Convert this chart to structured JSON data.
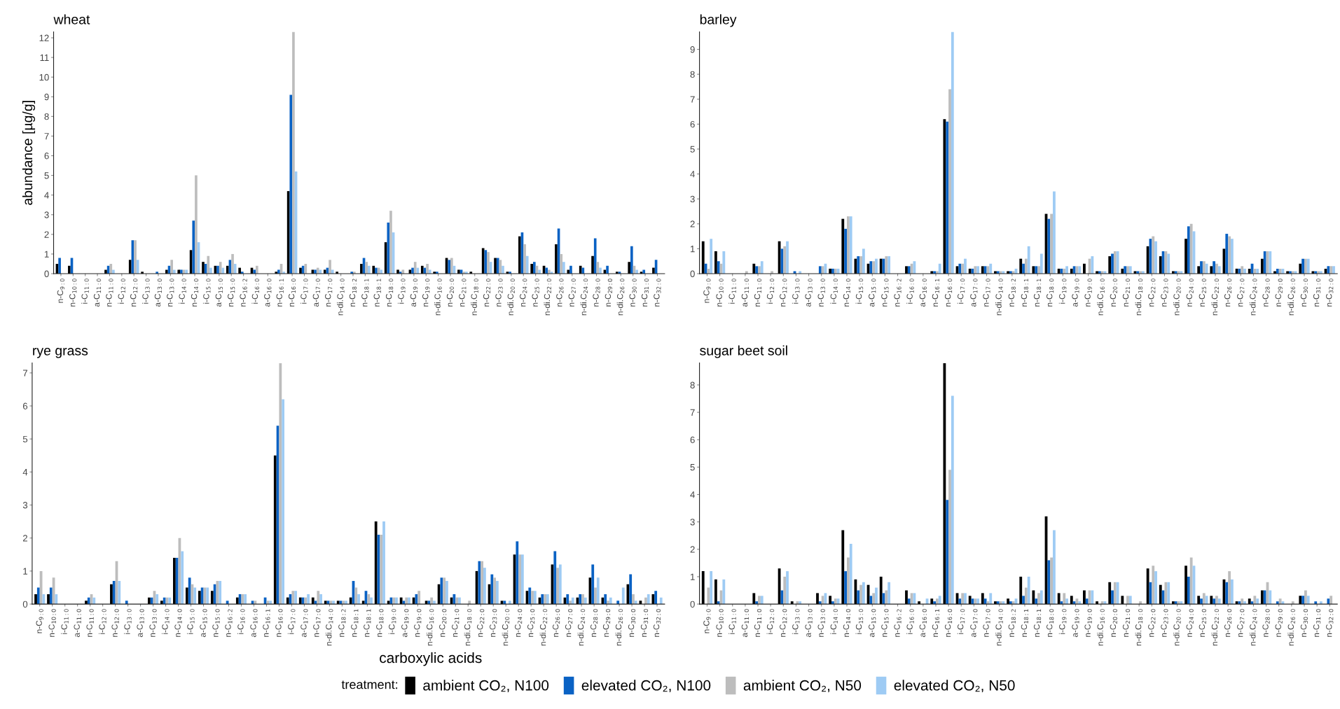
{
  "chart_data": [
    {
      "type": "bar",
      "title": "wheat",
      "ylabel": "abundance [µg/g]",
      "categories": [
        "n-C$_{9:0}$",
        "n-C$_{10:0}$",
        "i-C$_{11:0}$",
        "a-C$_{11:0}$",
        "n-C$_{11:0}$",
        "i-C$_{12:0}$",
        "n-C$_{12:0}$",
        "i-C$_{13:0}$",
        "a-C$_{13:0}$",
        "n-C$_{13:0}$",
        "i-C$_{14:0}$",
        "n-C$_{14:0}$",
        "i-C$_{15:0}$",
        "a-C$_{15:0}$",
        "n-C$_{15:0}$",
        "n-C$_{16:2}$",
        "i-C$_{16:0}$",
        "a-C$_{16:0}$",
        "n-C$_{16:1}$",
        "n-C$_{16:0}$",
        "i-C$_{17:0}$",
        "a-C$_{17:0}$",
        "n-C$_{17:0}$",
        "n-di.C$_{14:0}$",
        "n-C$_{18:2}$",
        "n-C$_{18:1}$",
        "n-C$_{18:1}$",
        "n-C$_{18:0}$",
        "i-C$_{19:0}$",
        "a-C$_{19:0}$",
        "n-C$_{19:0}$",
        "n-di.C$_{16:0}$",
        "n-C$_{20:0}$",
        "n-C$_{21:0}$",
        "n-di.C$_{18:0}$",
        "n-C$_{22:0}$",
        "n-C$_{23:0}$",
        "n-di.C$_{20:0}$",
        "n-C$_{24:0}$",
        "n-C$_{25:0}$",
        "n-di.C$_{22:0}$",
        "n-C$_{26:0}$",
        "n-C$_{27:0}$",
        "n-di.C$_{24:0}$",
        "n-C$_{28:0}$",
        "n-C$_{29:0}$",
        "n-di.C$_{26:0}$",
        "n-C$_{30:0}$",
        "n-C$_{31:0}$",
        "n-C$_{32:0}$"
      ],
      "series": [
        {
          "color": "#000000",
          "values": [
            0.5,
            0.4,
            0,
            0,
            0.2,
            0,
            0.7,
            0.1,
            0,
            0.2,
            0.2,
            1.2,
            0.6,
            0.4,
            0.4,
            0.3,
            0.3,
            0,
            0.1,
            4.2,
            0.3,
            0.2,
            0.2,
            0.1,
            0,
            0.5,
            0.4,
            1.6,
            0.2,
            0.2,
            0.4,
            0.1,
            0.8,
            0.2,
            0.1,
            1.3,
            0.8,
            0.1,
            1.9,
            0.5,
            0.4,
            1.5,
            0.2,
            0.4,
            0.9,
            0.2,
            0.1,
            0.6,
            0.1,
            0.3
          ]
        },
        {
          "color": "#0a62c4",
          "values": [
            0.8,
            0.8,
            0,
            0,
            0.4,
            0,
            1.7,
            0,
            0.1,
            0.4,
            0.2,
            2.7,
            0.5,
            0.4,
            0.7,
            0.1,
            0.2,
            0,
            0.2,
            9.1,
            0.4,
            0.2,
            0.3,
            0,
            0.1,
            0.8,
            0.3,
            2.6,
            0.1,
            0.3,
            0.3,
            0.1,
            0.7,
            0.2,
            0,
            1.2,
            0.8,
            0.1,
            2.1,
            0.6,
            0.3,
            2.3,
            0.4,
            0.3,
            1.8,
            0.4,
            0.1,
            1.4,
            0.2,
            0.7
          ]
        },
        {
          "color": "#bdbdbd",
          "values": [
            0,
            0,
            0,
            0,
            0.5,
            0,
            1.7,
            0,
            0,
            0.7,
            0.2,
            5.0,
            0.9,
            0.6,
            1.0,
            0,
            0.4,
            0,
            0.5,
            12.3,
            0.5,
            0.3,
            0.7,
            0,
            0.1,
            0.6,
            0.3,
            3.2,
            0.2,
            0.6,
            0.5,
            0,
            0.8,
            0.1,
            0,
            1.1,
            0.7,
            0,
            1.5,
            0.4,
            0.2,
            1.0,
            0,
            0,
            0.6,
            0,
            0,
            0.4,
            0,
            0
          ]
        },
        {
          "color": "#9ecbf4",
          "values": [
            0,
            0,
            0,
            0,
            0.2,
            0,
            0.7,
            0,
            0,
            0.2,
            0.2,
            1.6,
            0.3,
            0.3,
            0.5,
            0,
            0,
            0,
            0.1,
            5.2,
            0,
            0.2,
            0.2,
            0,
            0,
            0.4,
            0.2,
            2.1,
            0,
            0.3,
            0.2,
            0,
            0.4,
            0.1,
            0,
            0.6,
            0.4,
            0,
            0.9,
            0.2,
            0.1,
            0.6,
            0,
            0,
            0.3,
            0,
            0,
            0.2,
            0,
            0
          ]
        }
      ],
      "ylim": [
        0,
        12.3
      ],
      "yticks": [
        0,
        1,
        2,
        3,
        4,
        5,
        6,
        7,
        8,
        9,
        10,
        11,
        12
      ]
    },
    {
      "type": "bar",
      "title": "barley",
      "categories": [
        "n-C$_{9:0}$",
        "n-C$_{10:0}$",
        "i-C$_{11:0}$",
        "a-C$_{11:0}$",
        "n-C$_{11:0}$",
        "i-C$_{12:0}$",
        "n-C$_{12:0}$",
        "i-C$_{13:0}$",
        "a-C$_{13:0}$",
        "n-C$_{13:0}$",
        "i-C$_{14:0}$",
        "n-C$_{14:0}$",
        "i-C$_{15:0}$",
        "a-C$_{15:0}$",
        "n-C$_{15:0}$",
        "n-C$_{16:2}$",
        "i-C$_{16:0}$",
        "a-C$_{16:0}$",
        "n-C$_{16:1}$",
        "n-C$_{16:0}$",
        "i-C$_{17:0}$",
        "a-C$_{17:0}$",
        "n-C$_{17:0}$",
        "n-di.C$_{14:0}$",
        "n-C$_{18:2}$",
        "n-C$_{18:1}$",
        "n-C$_{18:1}$",
        "n-C$_{18:0}$",
        "i-C$_{19:0}$",
        "a-C$_{19:0}$",
        "n-C$_{19:0}$",
        "n-di.C$_{16:0}$",
        "n-C$_{20:0}$",
        "n-C$_{21:0}$",
        "n-di.C$_{18:0}$",
        "n-C$_{22:0}$",
        "n-C$_{23:0}$",
        "n-di.C$_{20:0}$",
        "n-C$_{24:0}$",
        "n-C$_{25:0}$",
        "n-di.C$_{22:0}$",
        "n-C$_{26:0}$",
        "n-C$_{27:0}$",
        "n-di.C$_{24:0}$",
        "n-C$_{28:0}$",
        "n-C$_{29:0}$",
        "n-di.C$_{26:0}$",
        "n-C$_{30:0}$",
        "n-C$_{31:0}$",
        "n-C$_{32:0}$"
      ],
      "series": [
        {
          "color": "#000000",
          "values": [
            1.3,
            0.9,
            0,
            0,
            0.4,
            0,
            1.3,
            0,
            0,
            0,
            0.2,
            2.2,
            0.6,
            0.4,
            0.6,
            0,
            0.3,
            0,
            0.1,
            6.2,
            0.3,
            0.2,
            0.3,
            0.1,
            0.1,
            0.6,
            0.3,
            2.4,
            0.2,
            0.2,
            0.4,
            0.1,
            0.7,
            0.2,
            0.1,
            1.1,
            0.7,
            0.1,
            1.4,
            0.3,
            0.3,
            1.0,
            0.2,
            0.2,
            0.6,
            0.1,
            0.1,
            0.4,
            0.1,
            0.2
          ]
        },
        {
          "color": "#0a62c4",
          "values": [
            0.4,
            0.5,
            0,
            0,
            0.3,
            0,
            1.0,
            0.1,
            0,
            0.3,
            0.2,
            1.8,
            0.7,
            0.5,
            0.6,
            0,
            0.3,
            0,
            0.1,
            6.1,
            0.4,
            0.2,
            0.3,
            0.1,
            0.1,
            0.4,
            0.3,
            2.2,
            0.2,
            0.3,
            0,
            0.1,
            0.8,
            0.3,
            0.1,
            1.4,
            0.9,
            0.1,
            1.9,
            0.5,
            0.5,
            1.6,
            0.2,
            0.4,
            0.9,
            0.2,
            0.1,
            0.6,
            0.1,
            0.3
          ]
        },
        {
          "color": "#bdbdbd",
          "values": [
            0.2,
            0.4,
            0,
            0.1,
            0.3,
            0.1,
            1.1,
            0,
            0,
            0.3,
            0.2,
            2.3,
            0.7,
            0.5,
            0.7,
            0,
            0.4,
            0,
            0.1,
            7.4,
            0.4,
            0.3,
            0.3,
            0.1,
            0.1,
            0.6,
            0.3,
            2.4,
            0.2,
            0.3,
            0.6,
            0.1,
            0.9,
            0.3,
            0.1,
            1.5,
            0.9,
            0.1,
            2.0,
            0.5,
            0.4,
            1.5,
            0.3,
            0.2,
            0.9,
            0.2,
            0.1,
            0.6,
            0.1,
            0.3
          ]
        },
        {
          "color": "#9ecbf4",
          "values": [
            1.4,
            0.9,
            0,
            0,
            0.5,
            0,
            1.3,
            0.1,
            0,
            0.4,
            0.2,
            2.3,
            1.0,
            0.6,
            0.7,
            0,
            0.5,
            0,
            0.4,
            9.7,
            0.6,
            0.3,
            0.4,
            0.1,
            0.2,
            1.1,
            0.8,
            3.3,
            0.3,
            0.3,
            0.7,
            0.1,
            0.9,
            0.3,
            0.1,
            1.3,
            0.8,
            0.1,
            1.7,
            0.4,
            0.3,
            1.4,
            0.2,
            0.2,
            0.9,
            0.2,
            0.1,
            0.6,
            0.1,
            0.3
          ]
        }
      ],
      "ylim": [
        0,
        9.7
      ],
      "yticks": [
        0,
        1,
        2,
        3,
        4,
        5,
        6,
        7,
        8,
        9
      ]
    },
    {
      "type": "bar",
      "title": "rye grass",
      "xlabel": "carboxylic acids",
      "legend": "bottom",
      "legend_title": "treatment:",
      "categories": [
        "n-C$_{9:0}$",
        "n-C$_{10:0}$",
        "i-C$_{11:0}$",
        "a-C$_{11:0}$",
        "n-C$_{11:0}$",
        "i-C$_{12:0}$",
        "n-C$_{12:0}$",
        "i-C$_{13:0}$",
        "a-C$_{13:0}$",
        "n-C$_{13:0}$",
        "i-C$_{14:0}$",
        "n-C$_{14:0}$",
        "i-C$_{15:0}$",
        "a-C$_{15:0}$",
        "n-C$_{15:0}$",
        "n-C$_{16:2}$",
        "i-C$_{16:0}$",
        "a-C$_{16:0}$",
        "n-C$_{16:1}$",
        "n-C$_{16:0}$",
        "i-C$_{17:0}$",
        "a-C$_{17:0}$",
        "n-C$_{17:0}$",
        "n-di.C$_{14:0}$",
        "n-C$_{18:2}$",
        "n-C$_{18:1}$",
        "n-C$_{18:1}$",
        "n-C$_{18:0}$",
        "i-C$_{19:0}$",
        "a-C$_{19:0}$",
        "n-C$_{19:0}$",
        "n-di.C$_{16:0}$",
        "n-C$_{20:0}$",
        "n-C$_{21:0}$",
        "n-di.C$_{18:0}$",
        "n-C$_{22:0}$",
        "n-C$_{23:0}$",
        "n-di.C$_{20:0}$",
        "n-C$_{24:0}$",
        "n-C$_{25:0}$",
        "n-di.C$_{22:0}$",
        "n-C$_{26:0}$",
        "n-C$_{27:0}$",
        "n-di.C$_{24:0}$",
        "n-C$_{28:0}$",
        "n-C$_{29:0}$",
        "n-di.C$_{26:0}$",
        "n-C$_{30:0}$",
        "n-C$_{31:0}$",
        "n-C$_{32:0}$"
      ],
      "series": [
        {
          "name": "ambient CO₂, N100",
          "color": "#000000",
          "values": [
            0.3,
            0.3,
            0,
            0,
            0.1,
            0,
            0.6,
            0,
            0,
            0.2,
            0.1,
            1.4,
            0.5,
            0.4,
            0.4,
            0,
            0.2,
            0,
            0,
            4.5,
            0.2,
            0.2,
            0.2,
            0.1,
            0.1,
            0.2,
            0.1,
            2.5,
            0.1,
            0.2,
            0.2,
            0.1,
            0.6,
            0.2,
            0,
            1.0,
            0.6,
            0.1,
            1.5,
            0.4,
            0.2,
            1.2,
            0.2,
            0.2,
            0.8,
            0.2,
            0,
            0.6,
            0.1,
            0.3
          ]
        },
        {
          "name": "elevated CO₂, N100",
          "color": "#0a62c4",
          "values": [
            0.5,
            0.5,
            0,
            0,
            0.2,
            0,
            0.7,
            0.1,
            0,
            0.2,
            0.2,
            1.4,
            0.8,
            0.5,
            0.6,
            0.1,
            0.3,
            0.1,
            0.2,
            5.4,
            0.3,
            0.2,
            0.1,
            0.1,
            0.1,
            0.7,
            0.4,
            2.1,
            0.2,
            0.1,
            0.3,
            0.1,
            0.8,
            0.3,
            0,
            1.3,
            0.9,
            0.1,
            1.9,
            0.5,
            0.3,
            1.6,
            0.3,
            0.3,
            1.2,
            0.3,
            0.1,
            0.9,
            0,
            0.4
          ]
        },
        {
          "name": "ambient CO₂, N50",
          "color": "#bdbdbd",
          "values": [
            1.0,
            0.8,
            0,
            0,
            0.3,
            0,
            1.3,
            0,
            0,
            0.4,
            0.2,
            2.0,
            0.6,
            0.5,
            0.7,
            0,
            0.3,
            0.1,
            0.1,
            7.3,
            0.4,
            0.2,
            0.4,
            0.1,
            0.1,
            0.5,
            0.3,
            2.1,
            0.2,
            0.2,
            0.4,
            0.2,
            0.8,
            0.2,
            0.1,
            1.3,
            0.8,
            0,
            1.5,
            0.4,
            0.3,
            1.1,
            0.1,
            0.3,
            0.5,
            0.1,
            0,
            0.3,
            0.2,
            0
          ]
        },
        {
          "name": "elevated CO₂, N50",
          "color": "#9ecbf4",
          "values": [
            0.3,
            0.3,
            0,
            0,
            0.2,
            0,
            0.7,
            0,
            0,
            0.3,
            0.2,
            1.6,
            0.5,
            0.5,
            0.7,
            0,
            0.3,
            0,
            0.1,
            6.2,
            0.4,
            0.3,
            0.3,
            0.1,
            0.1,
            0.3,
            0.2,
            2.5,
            0.2,
            0.2,
            0,
            0.1,
            0.7,
            0.2,
            0,
            1.1,
            0.7,
            0.1,
            1.5,
            0.4,
            0.3,
            1.2,
            0.2,
            0.2,
            0.8,
            0.2,
            0.5,
            0.1,
            0.3,
            0.2
          ]
        }
      ],
      "ylim": [
        0,
        7.3
      ],
      "yticks": [
        0,
        1,
        2,
        3,
        4,
        5,
        6,
        7
      ]
    },
    {
      "type": "bar",
      "title": "sugar beet soil",
      "categories": [
        "n-C$_{9:0}$",
        "n-C$_{10:0}$",
        "i-C$_{11:0}$",
        "a-C$_{11:0}$",
        "n-C$_{11:0}$",
        "i-C$_{12:0}$",
        "n-C$_{12:0}$",
        "i-C$_{13:0}$",
        "a-C$_{13:0}$",
        "n-C$_{13:0}$",
        "i-C$_{14:0}$",
        "n-C$_{14:0}$",
        "i-C$_{15:0}$",
        "a-C$_{15:0}$",
        "n-C$_{15:0}$",
        "n-C$_{16:2}$",
        "i-C$_{16:0}$",
        "a-C$_{16:0}$",
        "n-C$_{16:1}$",
        "n-C$_{16:0}$",
        "i-C$_{17:0}$",
        "a-C$_{17:0}$",
        "n-C$_{17:0}$",
        "n-di.C$_{14:0}$",
        "n-C$_{18:2}$",
        "n-C$_{18:1}$",
        "n-C$_{18:1}$",
        "n-C$_{18:0}$",
        "i-C$_{19:0}$",
        "a-C$_{19:0}$",
        "n-C$_{19:0}$",
        "n-di.C$_{16:0}$",
        "n-C$_{20:0}$",
        "n-C$_{21:0}$",
        "n-di.C$_{18:0}$",
        "n-C$_{22:0}$",
        "n-C$_{23:0}$",
        "n-di.C$_{20:0}$",
        "n-C$_{24:0}$",
        "n-C$_{25:0}$",
        "n-di.C$_{22:0}$",
        "n-C$_{26:0}$",
        "n-C$_{27:0}$",
        "n-di.C$_{24:0}$",
        "n-C$_{28:0}$",
        "n-C$_{29:0}$",
        "n-di.C$_{26:0}$",
        "n-C$_{30:0}$",
        "n-C$_{31:0}$",
        "n-C$_{32:0}$"
      ],
      "series": [
        {
          "color": "#000000",
          "values": [
            1.2,
            0.9,
            0,
            0,
            0.4,
            0,
            1.3,
            0.1,
            0,
            0.4,
            0.3,
            2.7,
            0.9,
            0.7,
            1.0,
            0,
            0.5,
            0.1,
            0.2,
            8.8,
            0.4,
            0.3,
            0.4,
            0.1,
            0.2,
            1.0,
            0.5,
            3.2,
            0.4,
            0.3,
            0.5,
            0.1,
            0.8,
            0.3,
            0,
            1.3,
            0.7,
            0.1,
            1.4,
            0.3,
            0.3,
            0.9,
            0.1,
            0.2,
            0.5,
            0,
            0,
            0.3,
            0,
            0
          ]
        },
        {
          "color": "#0a62c4",
          "values": [
            0,
            0.1,
            0,
            0,
            0.1,
            0,
            0.5,
            0,
            0,
            0.1,
            0.1,
            1.2,
            0.5,
            0.3,
            0.4,
            0,
            0.2,
            0,
            0.1,
            3.8,
            0.2,
            0.2,
            0.2,
            0.1,
            0.1,
            0.3,
            0.2,
            1.6,
            0.1,
            0.1,
            0.2,
            0,
            0.5,
            0,
            0,
            0.8,
            0.5,
            0.1,
            1.0,
            0.2,
            0.2,
            0.8,
            0.1,
            0.1,
            0.5,
            0.1,
            0,
            0.3,
            0.1,
            0.2
          ]
        },
        {
          "color": "#bdbdbd",
          "values": [
            0.6,
            0.5,
            0,
            0,
            0.3,
            0,
            1.0,
            0.1,
            0,
            0.3,
            0.2,
            1.7,
            0.7,
            0.4,
            0.5,
            0,
            0.4,
            0,
            0.2,
            4.9,
            0.4,
            0.2,
            0.1,
            0.1,
            0.1,
            0.6,
            0.4,
            1.7,
            0.4,
            0.2,
            0.5,
            0.1,
            0.8,
            0.3,
            0.1,
            1.4,
            0.8,
            0.1,
            1.7,
            0.4,
            0.3,
            1.2,
            0.2,
            0.3,
            0.8,
            0.2,
            0.1,
            0.5,
            0,
            0.3
          ]
        },
        {
          "color": "#9ecbf4",
          "values": [
            1.2,
            0.9,
            0,
            0,
            0.3,
            0,
            1.2,
            0.1,
            0,
            0.4,
            0.2,
            2.2,
            0.8,
            0.6,
            0.8,
            0,
            0.4,
            0.2,
            0.3,
            7.6,
            0.4,
            0.2,
            0.4,
            0.1,
            0.2,
            1.0,
            0.5,
            2.7,
            0.2,
            0.1,
            0.5,
            0.1,
            0.8,
            0.3,
            0,
            1.2,
            0.8,
            0.1,
            1.4,
            0.3,
            0.2,
            0.9,
            0.1,
            0.2,
            0.5,
            0.1,
            0,
            0.3,
            0.1,
            0
          ]
        }
      ],
      "ylim": [
        0,
        8.8
      ],
      "yticks": [
        0,
        1,
        2,
        3,
        4,
        5,
        6,
        7,
        8
      ]
    }
  ]
}
